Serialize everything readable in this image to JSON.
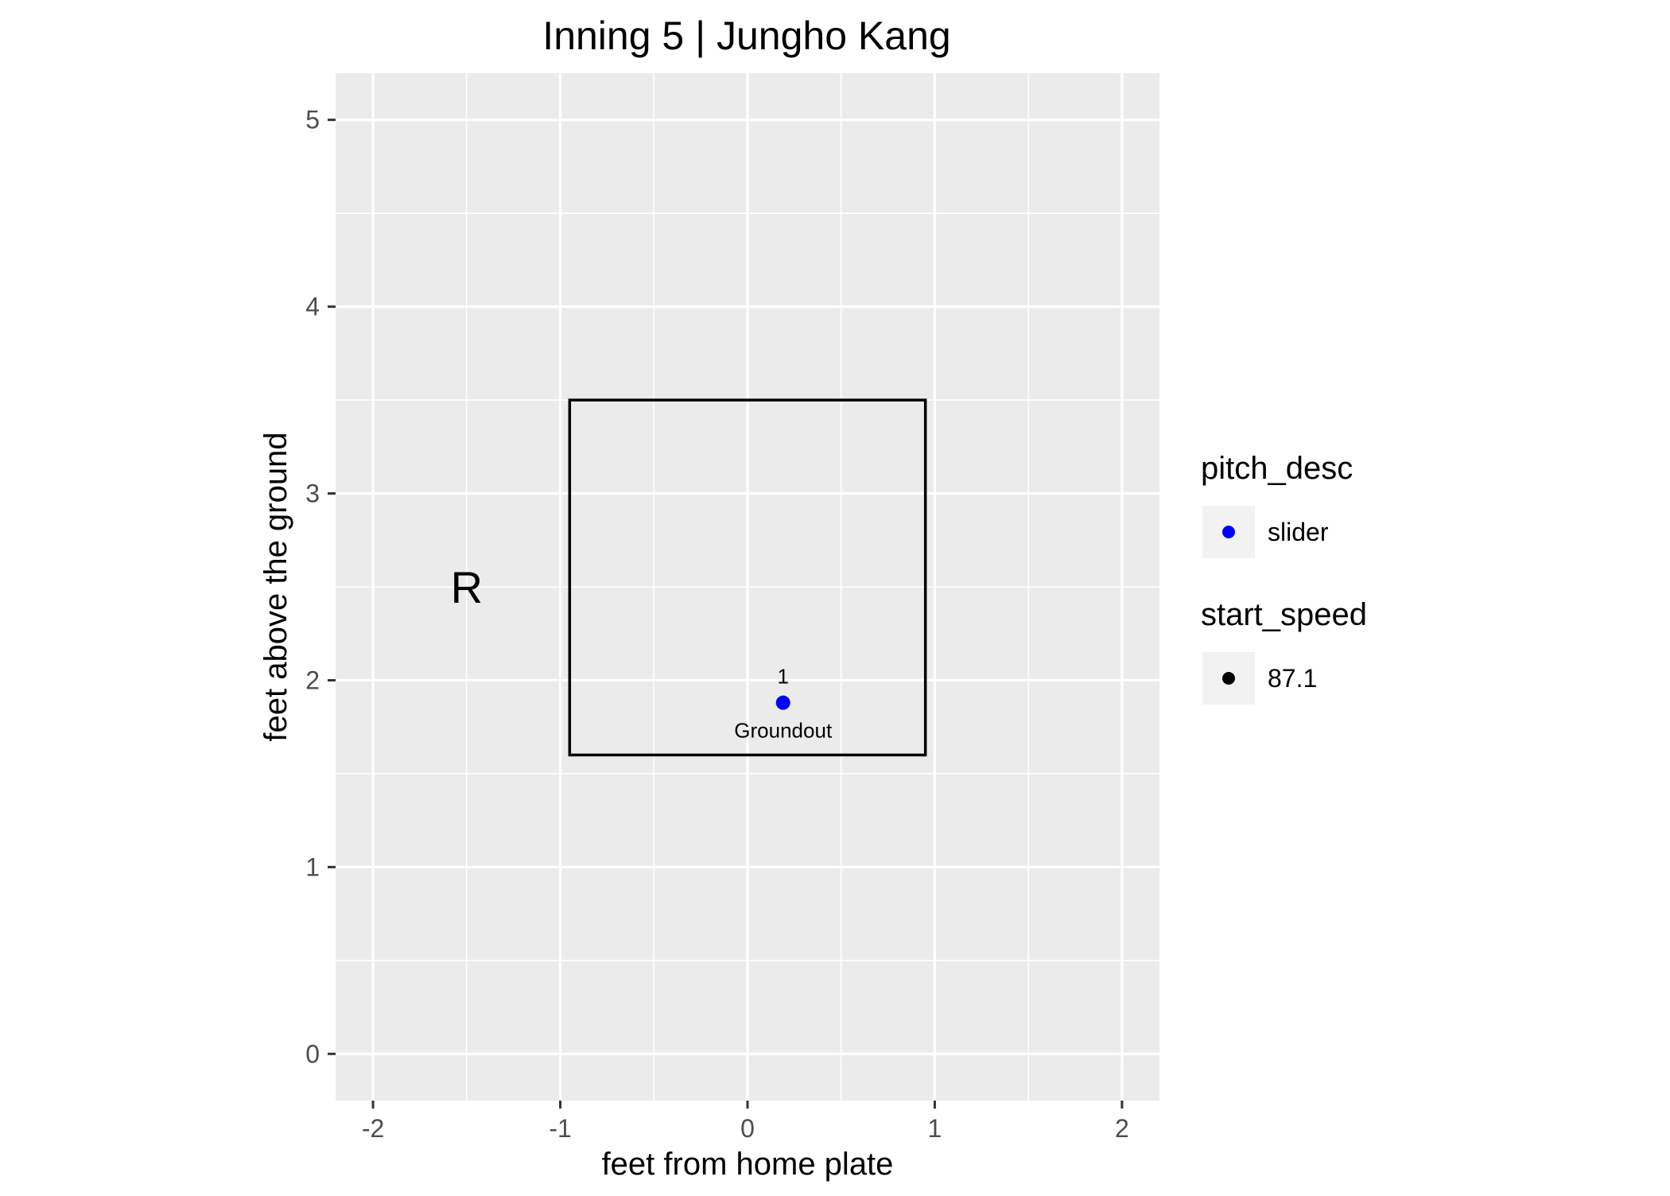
{
  "chart_data": {
    "type": "scatter",
    "title": "Inning 5  |  Jungho Kang",
    "xlabel": "feet from home plate",
    "ylabel": "feet above the ground",
    "xlim": [
      -2.2,
      2.2
    ],
    "ylim": [
      -0.25,
      5.25
    ],
    "x_ticks": [
      -2,
      -1,
      0,
      1,
      2
    ],
    "x_tick_labels": [
      "-2",
      "-1",
      "0",
      "1",
      "2"
    ],
    "y_ticks": [
      0,
      1,
      2,
      3,
      4,
      5
    ],
    "y_tick_labels": [
      "0",
      "1",
      "2",
      "3",
      "4",
      "5"
    ],
    "grid": true,
    "strike_zone": {
      "x": [
        -0.95,
        0.95
      ],
      "y": [
        1.6,
        3.5
      ]
    },
    "batter_side": {
      "label": "R",
      "x": -1.5,
      "y": 2.5
    },
    "series": [
      {
        "name": "slider",
        "color": "#0000ff",
        "points": [
          {
            "x": 0.19,
            "y": 1.88,
            "label": "1",
            "event": "Groundout",
            "start_speed": 87.1
          }
        ]
      }
    ],
    "legend": {
      "position": "right",
      "groups": [
        {
          "title": "pitch_desc",
          "entries": [
            {
              "label": "slider",
              "color": "#0000ff"
            }
          ]
        },
        {
          "title": "start_speed",
          "entries": [
            {
              "label": "87.1",
              "color": "#000000"
            }
          ]
        }
      ]
    },
    "colors": {
      "panel_background": "#ebebeb",
      "grid_line": "#ffffff",
      "zone_outline": "#000000",
      "axis_text": "#4d4d4d",
      "tick_mark": "#333333"
    }
  }
}
